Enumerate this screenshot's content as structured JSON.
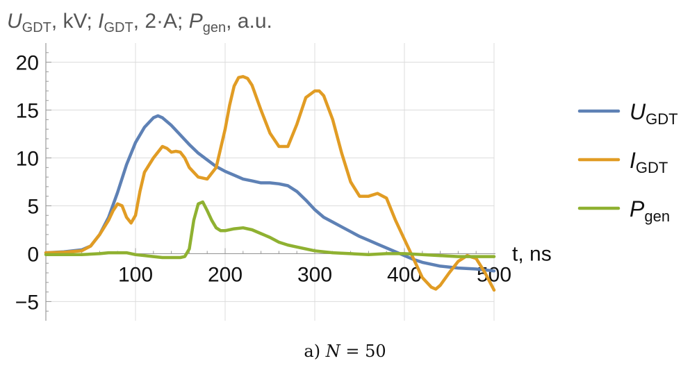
{
  "chart_data": {
    "type": "line",
    "ylabel_parts": [
      {
        "text": "U",
        "italic": true
      },
      {
        "text": "GDT",
        "sub": true
      },
      {
        "text": ", kV; "
      },
      {
        "text": "I",
        "italic": true
      },
      {
        "text": "GDT",
        "sub": true
      },
      {
        "text": ", 2·A; "
      },
      {
        "text": "P",
        "italic": true
      },
      {
        "text": "gen",
        "sub": true
      },
      {
        "text": ", a.u."
      }
    ],
    "xlabel": "t, ns",
    "xlim": [
      0,
      500
    ],
    "ylim": [
      -7,
      22
    ],
    "xticks": [
      100,
      200,
      300,
      400,
      500
    ],
    "yticks": [
      -5,
      0,
      5,
      10,
      15,
      20
    ],
    "grid": true,
    "legend_position": "right",
    "series": [
      {
        "name_main": "U",
        "name_sub": "GDT",
        "color": "#5e81b5",
        "x": [
          0,
          20,
          40,
          50,
          60,
          70,
          80,
          90,
          100,
          110,
          120,
          125,
          130,
          140,
          150,
          160,
          170,
          180,
          190,
          200,
          210,
          220,
          230,
          240,
          250,
          260,
          270,
          280,
          290,
          300,
          310,
          320,
          330,
          340,
          350,
          360,
          370,
          380,
          390,
          400,
          410,
          420,
          440,
          460,
          480,
          500
        ],
        "y": [
          0.1,
          0.2,
          0.4,
          0.8,
          2.0,
          3.8,
          6.4,
          9.3,
          11.6,
          13.2,
          14.2,
          14.4,
          14.2,
          13.4,
          12.4,
          11.4,
          10.5,
          9.8,
          9.1,
          8.6,
          8.2,
          7.8,
          7.6,
          7.4,
          7.4,
          7.3,
          7.1,
          6.5,
          5.6,
          4.6,
          3.8,
          3.3,
          2.8,
          2.3,
          1.8,
          1.4,
          1.0,
          0.6,
          0.2,
          -0.2,
          -0.6,
          -0.9,
          -1.3,
          -1.5,
          -1.6,
          -1.8
        ]
      },
      {
        "name_main": "I",
        "name_sub": "GDT",
        "color": "#e19c24",
        "x": [
          0,
          20,
          40,
          50,
          60,
          70,
          75,
          80,
          85,
          90,
          95,
          100,
          105,
          110,
          120,
          130,
          135,
          140,
          145,
          150,
          155,
          160,
          170,
          180,
          190,
          200,
          205,
          210,
          215,
          220,
          225,
          230,
          240,
          250,
          260,
          270,
          280,
          290,
          300,
          305,
          310,
          320,
          330,
          340,
          350,
          360,
          370,
          380,
          390,
          400,
          410,
          420,
          430,
          435,
          440,
          450,
          460,
          470,
          480,
          490,
          500
        ],
        "y": [
          0.1,
          0.15,
          0.3,
          0.8,
          2.0,
          3.5,
          4.5,
          5.2,
          5.0,
          3.8,
          3.2,
          4.0,
          6.5,
          8.5,
          10.0,
          11.2,
          11.0,
          10.6,
          10.7,
          10.6,
          10.0,
          9.0,
          8.0,
          7.8,
          9.0,
          13.0,
          15.5,
          17.5,
          18.4,
          18.5,
          18.3,
          17.6,
          15.0,
          12.6,
          11.2,
          11.2,
          13.5,
          16.3,
          17.0,
          17.0,
          16.5,
          14.0,
          10.5,
          7.5,
          6.0,
          6.0,
          6.3,
          5.8,
          3.5,
          1.5,
          -0.5,
          -2.5,
          -3.5,
          -3.7,
          -3.3,
          -2.0,
          -0.8,
          -0.2,
          -0.5,
          -2.0,
          -3.8
        ]
      },
      {
        "name_main": "P",
        "name_sub": "gen",
        "color": "#8fb131",
        "x": [
          0,
          40,
          60,
          70,
          80,
          90,
          100,
          110,
          120,
          130,
          140,
          150,
          155,
          160,
          165,
          170,
          175,
          180,
          185,
          190,
          195,
          200,
          210,
          220,
          230,
          240,
          250,
          260,
          270,
          280,
          290,
          300,
          320,
          340,
          360,
          380,
          400,
          420,
          440,
          460,
          480,
          500
        ],
        "y": [
          -0.1,
          -0.1,
          0.0,
          0.1,
          0.1,
          0.1,
          -0.1,
          -0.2,
          -0.3,
          -0.4,
          -0.4,
          -0.4,
          -0.3,
          0.5,
          3.5,
          5.2,
          5.4,
          4.5,
          3.5,
          2.7,
          2.4,
          2.4,
          2.6,
          2.7,
          2.5,
          2.1,
          1.7,
          1.2,
          0.9,
          0.7,
          0.5,
          0.3,
          0.1,
          0.0,
          -0.1,
          0.0,
          0.0,
          -0.1,
          -0.2,
          -0.3,
          -0.3,
          -0.3
        ]
      }
    ]
  },
  "caption": {
    "prefix": "a) ",
    "variable": "N",
    "rest": " = 50"
  }
}
